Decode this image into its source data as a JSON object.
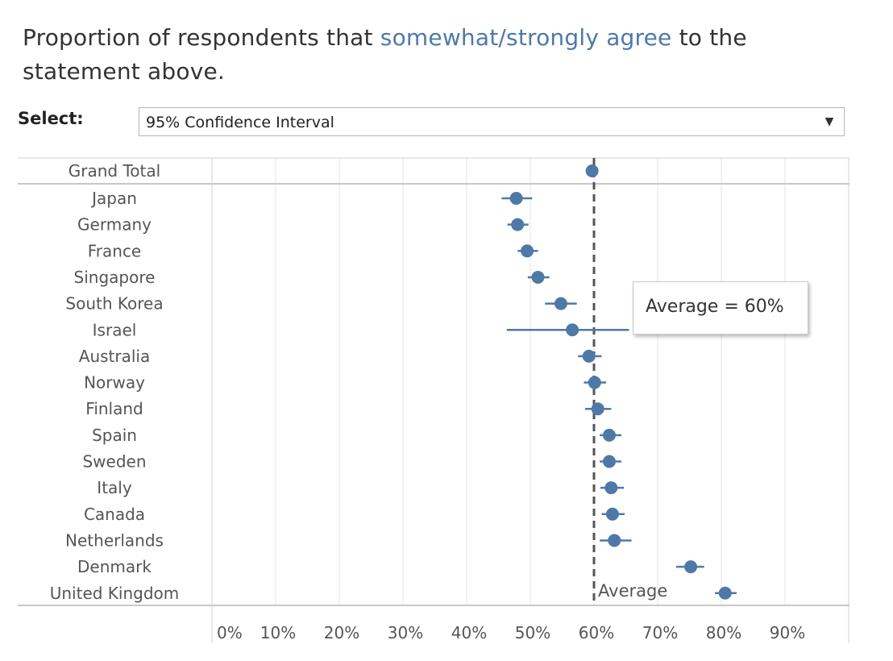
{
  "title": {
    "prefix": "Proportion of respondents that ",
    "highlight": "somewhat/strongly agree",
    "suffix": " to the statement above.",
    "highlight_color": "#4e79a7"
  },
  "selector": {
    "label": "Select:",
    "value": "95% Confidence Interval",
    "icon": "dropdown-arrow-icon"
  },
  "tooltip": {
    "text": "Average = 60%"
  },
  "average_label": "Average",
  "chart_data": {
    "type": "scatter",
    "subtype": "dot-plot-with-error-bars",
    "title": "Proportion of respondents that somewhat/strongly agree to the statement above.",
    "xlabel": "",
    "ylabel": "",
    "xlim": [
      0,
      100
    ],
    "x_ticks": [
      "0%",
      "10%",
      "20%",
      "30%",
      "40%",
      "50%",
      "60%",
      "70%",
      "80%",
      "90%"
    ],
    "x_tick_values": [
      0,
      10,
      20,
      30,
      40,
      50,
      60,
      70,
      80,
      90
    ],
    "average": 60,
    "color": "#4e79a7",
    "grand_total": {
      "name": "Grand Total",
      "value": 59.7,
      "lo": 59.7,
      "hi": 59.7
    },
    "categories": [
      "Japan",
      "Germany",
      "France",
      "Singapore",
      "South Korea",
      "Israel",
      "Australia",
      "Norway",
      "Finland",
      "Spain",
      "Sweden",
      "Italy",
      "Canada",
      "Netherlands",
      "Denmark",
      "United Kingdom"
    ],
    "values": [
      47.8,
      48.0,
      49.5,
      51.2,
      54.8,
      56.6,
      59.2,
      60.1,
      60.6,
      62.4,
      62.4,
      62.7,
      62.9,
      63.2,
      75.2,
      80.6
    ],
    "lo": [
      45.5,
      46.4,
      48.0,
      49.6,
      52.3,
      46.3,
      57.5,
      58.4,
      58.6,
      60.9,
      60.9,
      61.0,
      61.2,
      60.9,
      72.9,
      79.0
    ],
    "hi": [
      50.3,
      49.7,
      51.2,
      53.0,
      57.3,
      65.5,
      61.2,
      61.9,
      62.7,
      64.3,
      64.3,
      64.7,
      64.8,
      65.9,
      77.3,
      82.4
    ]
  }
}
